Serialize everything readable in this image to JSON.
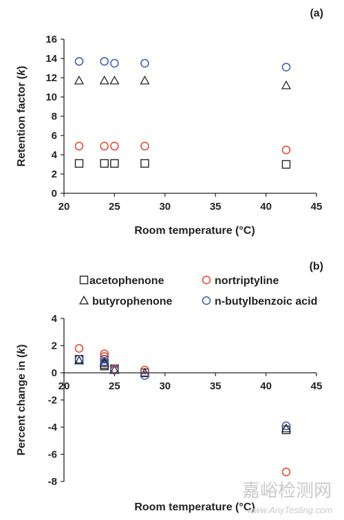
{
  "chart_data": [
    {
      "type": "scatter",
      "panel_label": "(a)",
      "xlabel": "Room temperature (°C)",
      "ylabel": "Retention factor (k)",
      "ylabel_plain": "Retention factor (",
      "ylabel_italic": "k",
      "ylabel_close": ")",
      "xlim": [
        20,
        45
      ],
      "ylim": [
        0,
        16
      ],
      "xticks": [
        20,
        25,
        30,
        35,
        40,
        45
      ],
      "yticks": [
        0,
        2,
        4,
        6,
        8,
        10,
        12,
        14,
        16
      ],
      "grid": false,
      "series": [
        {
          "name": "acetophenone",
          "marker": "square",
          "color": "#222222",
          "x": [
            21.5,
            24,
            25,
            28,
            42
          ],
          "y": [
            3.1,
            3.1,
            3.1,
            3.1,
            3.0
          ]
        },
        {
          "name": "nortriptyline",
          "marker": "circle",
          "color": "#e8412c",
          "x": [
            21.5,
            24,
            25,
            28,
            42
          ],
          "y": [
            4.9,
            4.9,
            4.9,
            4.9,
            4.5
          ]
        },
        {
          "name": "butyrophenone",
          "marker": "triangle",
          "color": "#222222",
          "x": [
            21.5,
            24,
            25,
            28,
            42
          ],
          "y": [
            11.7,
            11.7,
            11.7,
            11.7,
            11.2
          ]
        },
        {
          "name": "n-butylbenzoic acid",
          "marker": "circle",
          "color": "#3b56b0",
          "x": [
            21.5,
            24,
            25,
            28,
            42
          ],
          "y": [
            13.7,
            13.7,
            13.5,
            13.5,
            13.1
          ]
        }
      ]
    },
    {
      "type": "scatter",
      "panel_label": "(b)",
      "xlabel": "Room temperature (°C)",
      "ylabel": "Percent change in (k)",
      "ylabel_plain": "Percent change in (",
      "ylabel_italic": "k",
      "ylabel_close": ")",
      "xlim": [
        20,
        45
      ],
      "ylim": [
        -8,
        4
      ],
      "xticks": [
        20,
        25,
        30,
        35,
        40,
        45
      ],
      "yticks": [
        -8,
        -6,
        -4,
        -2,
        0,
        2,
        4
      ],
      "grid": false,
      "legend_position": "top",
      "series": [
        {
          "name": "acetophenone",
          "marker": "square",
          "color": "#222222",
          "x": [
            21.5,
            24,
            24,
            25,
            28,
            42
          ],
          "y": [
            1.0,
            0.5,
            0.6,
            0.3,
            0.0,
            -4.2
          ]
        },
        {
          "name": "nortriptyline",
          "marker": "circle",
          "color": "#e8412c",
          "x": [
            21.5,
            24,
            24,
            25,
            28,
            42
          ],
          "y": [
            1.8,
            1.4,
            1.2,
            0.3,
            0.2,
            -7.3
          ]
        },
        {
          "name": "butyrophenone",
          "marker": "triangle",
          "color": "#222222",
          "x": [
            21.5,
            24,
            24,
            25,
            28,
            42
          ],
          "y": [
            0.9,
            0.7,
            0.8,
            0.2,
            0.0,
            -4.1
          ]
        },
        {
          "name": "n-butylbenzoic acid",
          "marker": "circle",
          "color": "#3b56b0",
          "x": [
            21.5,
            24,
            24,
            25,
            28,
            42
          ],
          "y": [
            1.0,
            0.8,
            1.0,
            0.2,
            -0.2,
            -3.9
          ]
        }
      ]
    }
  ],
  "legend": [
    {
      "label": "acetophenone",
      "marker": "square",
      "color": "#222222"
    },
    {
      "label": "nortriptyline",
      "marker": "circle",
      "color": "#e8412c"
    },
    {
      "label": "butyrophenone",
      "marker": "triangle",
      "color": "#222222"
    },
    {
      "label": "n-butylbenzoic acid",
      "marker": "circle",
      "color": "#3b56b0"
    }
  ],
  "watermark": {
    "text": "嘉峪检测网",
    "url": "www.AnyTesting.com"
  }
}
